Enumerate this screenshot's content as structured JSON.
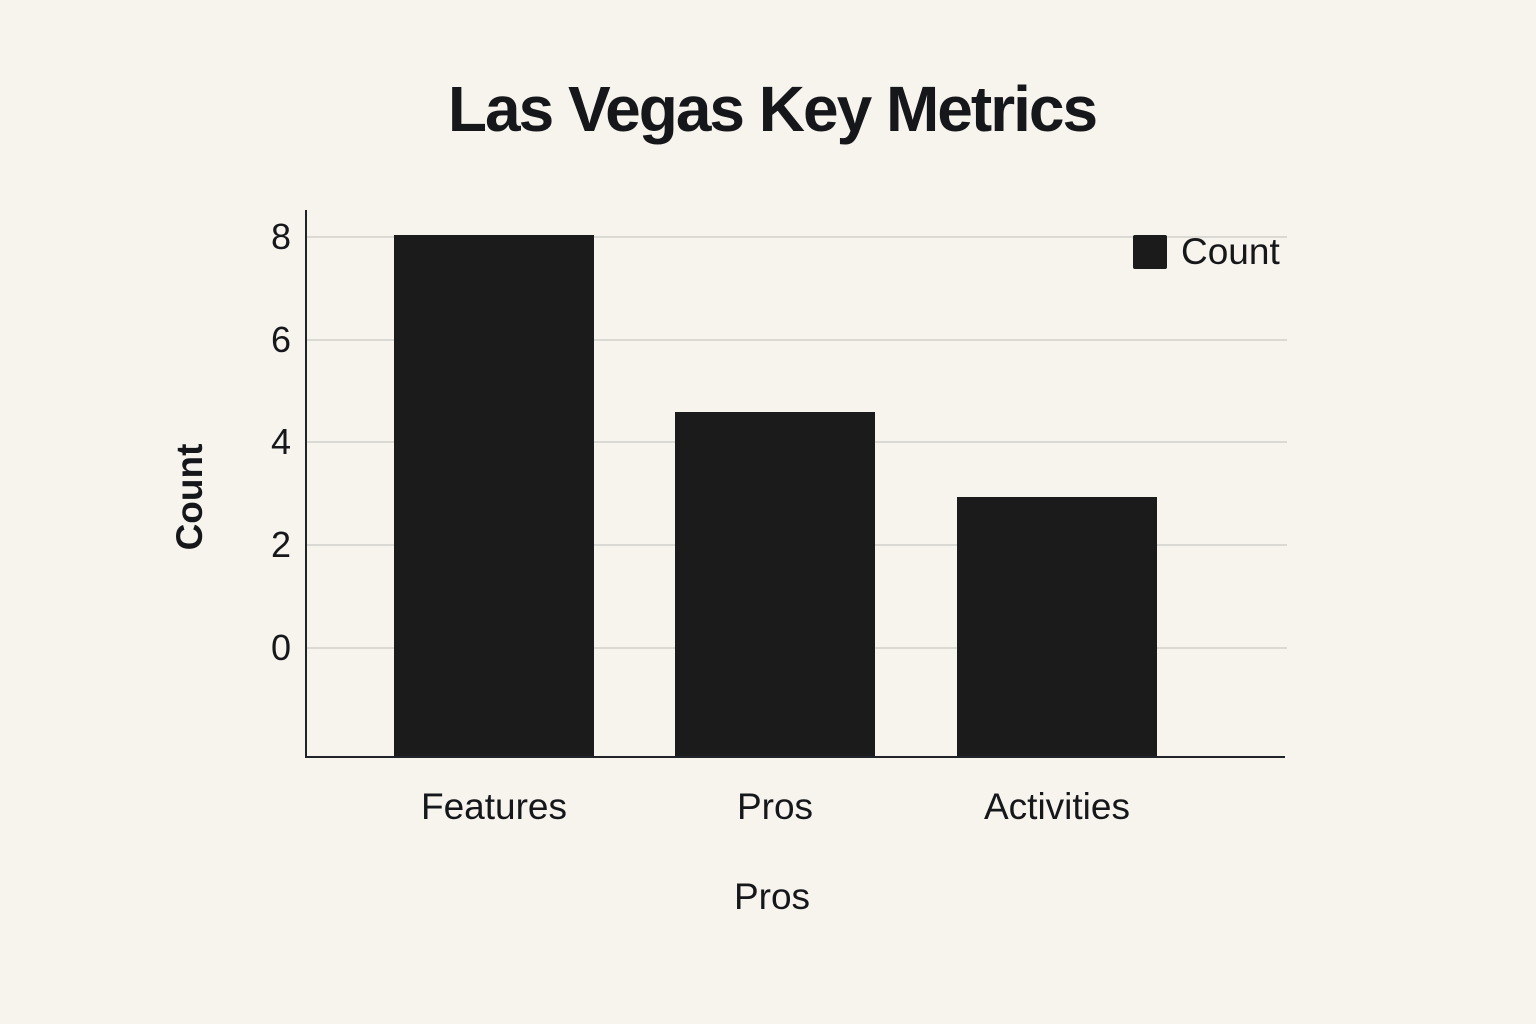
{
  "page": {
    "background_color": "#f7f4ee"
  },
  "chart_data": {
    "type": "bar",
    "title": "Las Vegas Key Metrics",
    "categories": [
      "Features",
      "Pros",
      "Activities"
    ],
    "series": [
      {
        "name": "Count",
        "values": [
          8,
          4.55,
          2.9
        ]
      }
    ],
    "xlabel": "Pros",
    "ylabel": "Count",
    "yticks": [
      0,
      2,
      4,
      6,
      8
    ],
    "ylim": [
      -2.14,
      8
    ],
    "grid": true,
    "legend": {
      "label": "Count",
      "position": "top-right",
      "swatch_color": "#1b1b1b"
    },
    "bar_color": "#1b1b1b",
    "text_color": "#15171a",
    "grid_color": "#dbd9d4",
    "axis_color": "#20242a"
  }
}
